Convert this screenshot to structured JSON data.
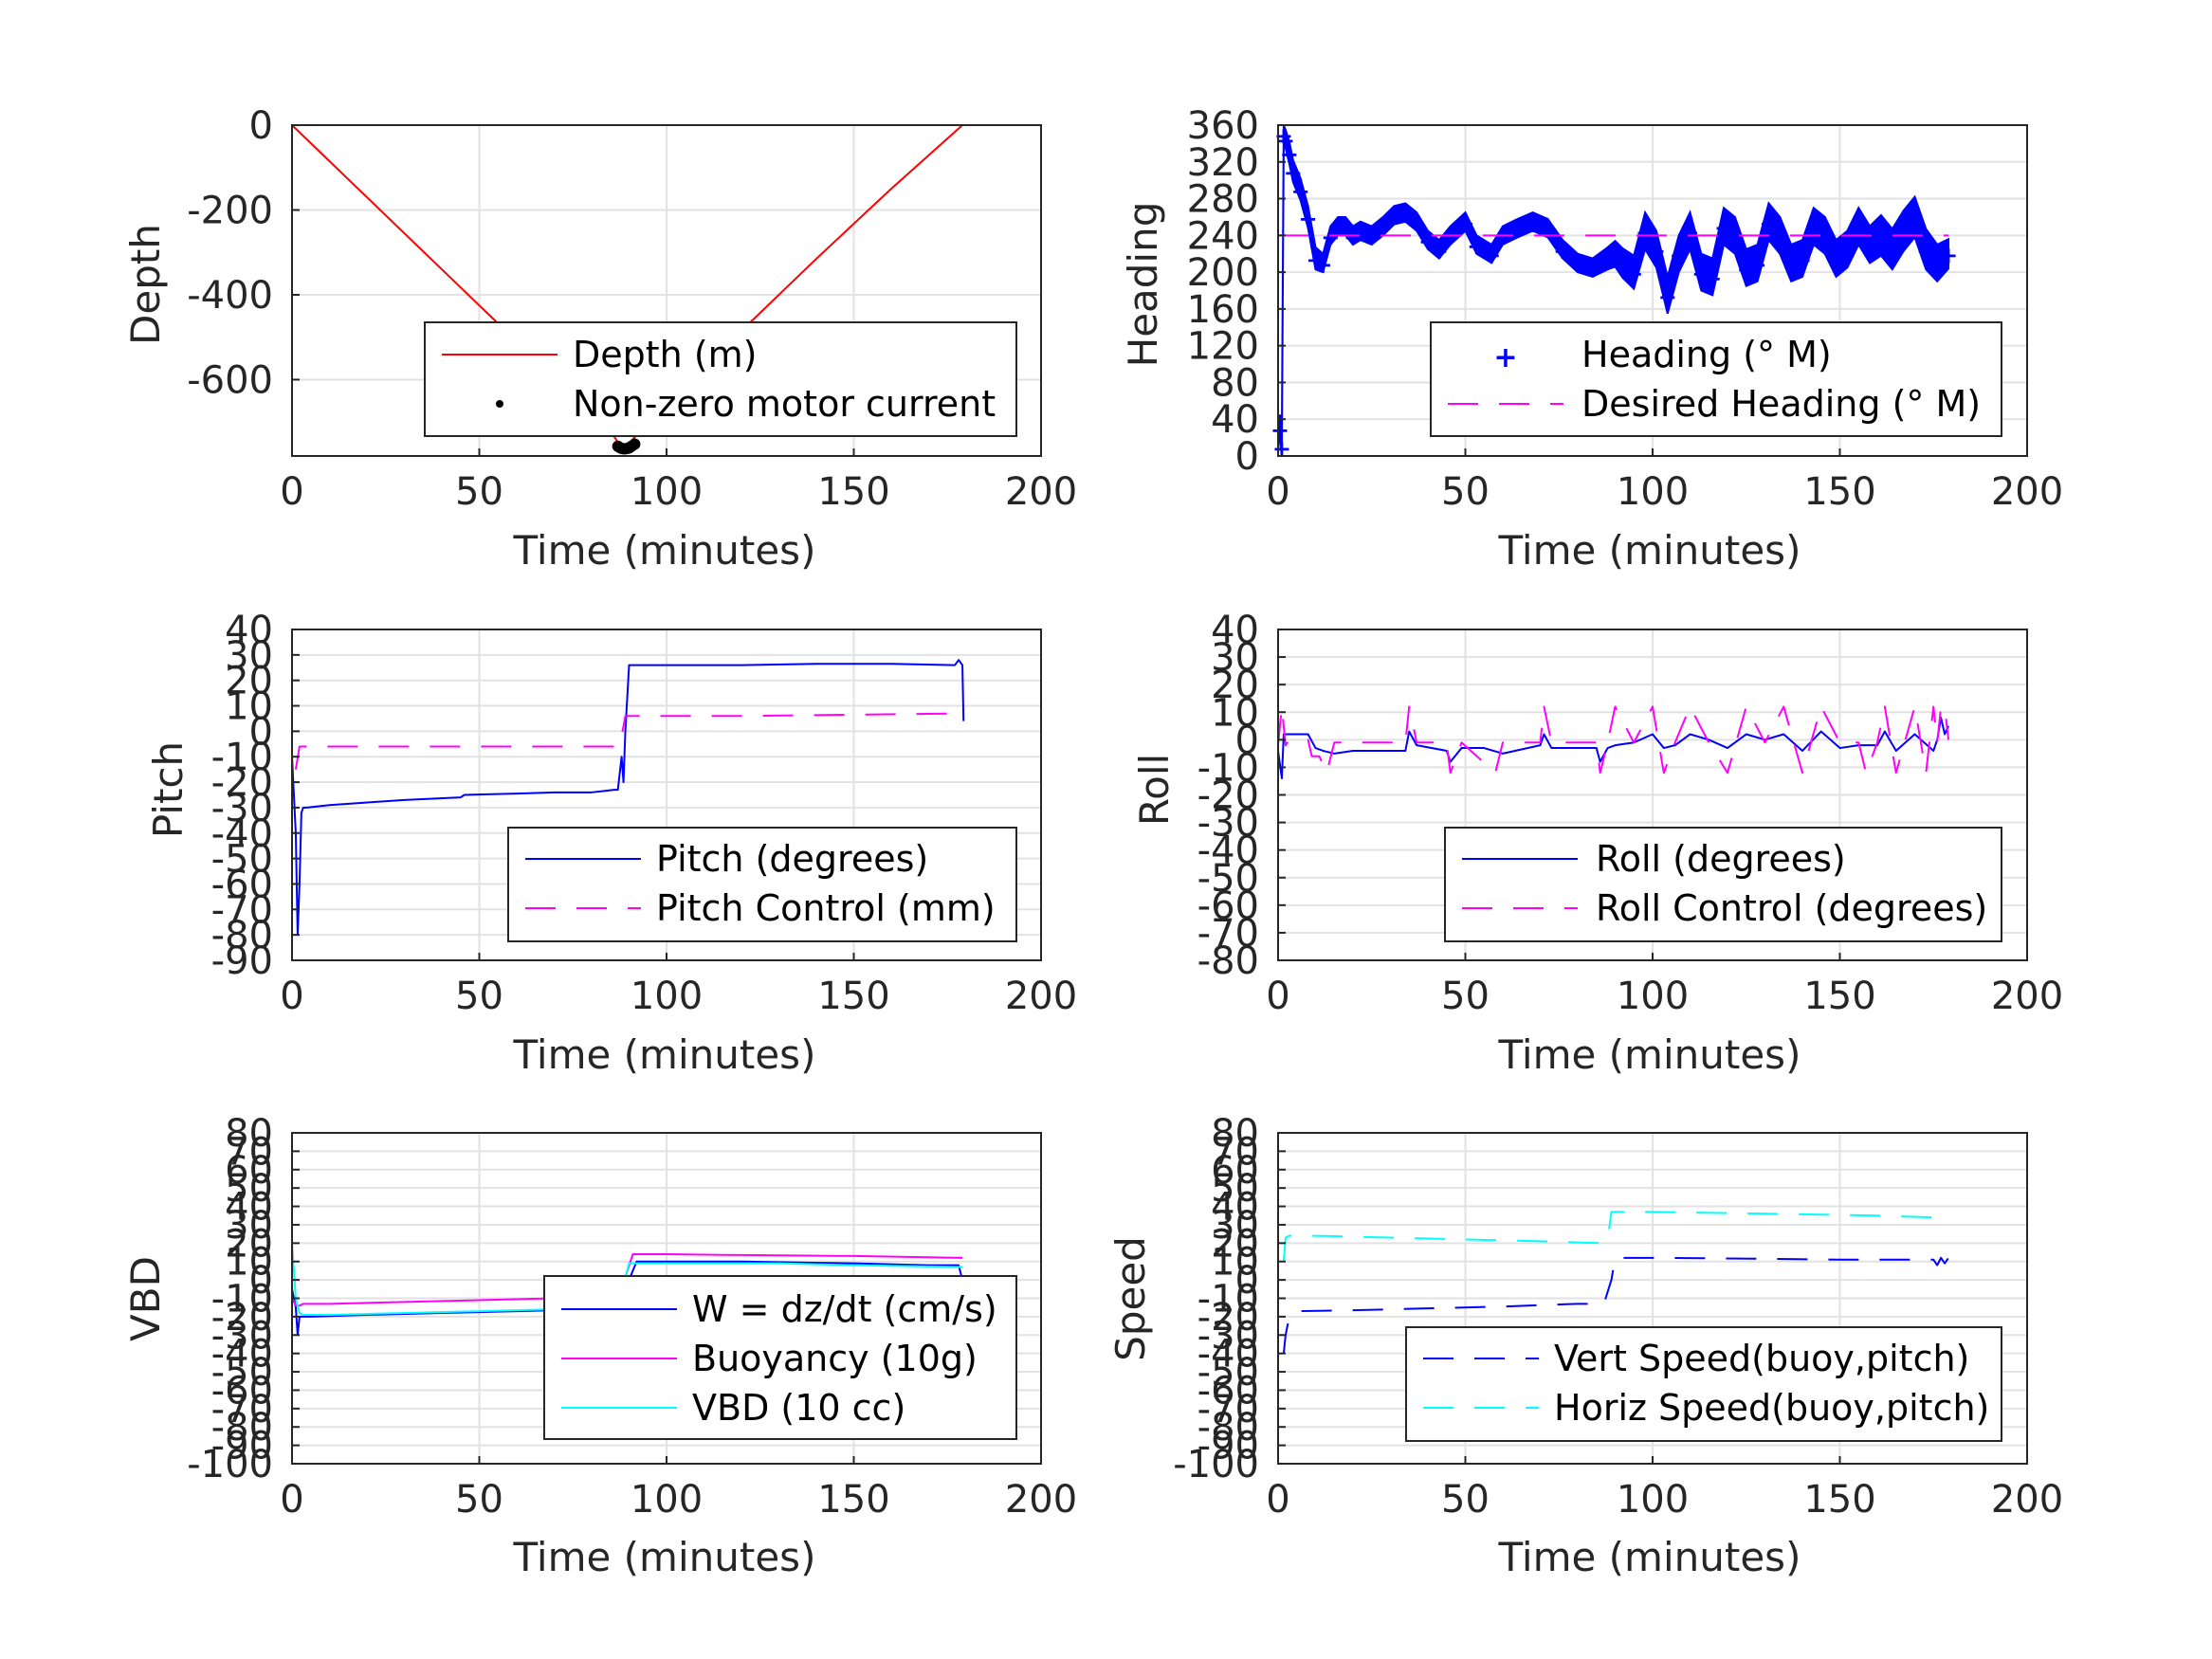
{
  "chart_data": [
    {
      "type": "line",
      "xlabel": "Time (minutes)",
      "ylabel": "Depth",
      "xlim": [
        0,
        200
      ],
      "ylim": [
        -780,
        0
      ],
      "xticks": [
        "0",
        "50",
        "100",
        "150",
        "200"
      ],
      "yticks": [
        0,
        -200,
        -400,
        -600
      ],
      "ytick_labels": [
        "0",
        "-200",
        "-400",
        "-600"
      ],
      "grid": true,
      "legend_position": "lower-right",
      "series": [
        {
          "name": "Depth (m)",
          "color": "#ff0000",
          "style": "solid",
          "x": [
            0,
            10,
            30,
            50,
            70,
            85,
            88,
            90,
            100,
            120,
            140,
            160,
            179
          ],
          "y": [
            0,
            -85,
            -255,
            -425,
            -595,
            -720,
            -762,
            -750,
            -655,
            -485,
            -315,
            -150,
            0
          ]
        },
        {
          "name": "Non-zero motor current",
          "color": "#000000",
          "style": "dots",
          "x": [
            87,
            87.5,
            88,
            88.5,
            89,
            89.5,
            90,
            90.5,
            91,
            91.5
          ],
          "y": [
            -757,
            -760,
            -762,
            -763,
            -763,
            -762,
            -761,
            -758,
            -755,
            -752
          ]
        }
      ]
    },
    {
      "type": "scatter",
      "xlabel": "Time (minutes)",
      "ylabel": "Heading",
      "xlim": [
        0,
        200
      ],
      "ylim": [
        0,
        360
      ],
      "xticks": [
        "0",
        "50",
        "100",
        "150",
        "200"
      ],
      "yticks": [
        0,
        40,
        80,
        120,
        160,
        200,
        240,
        280,
        320,
        360
      ],
      "ytick_labels": [
        "0",
        "40",
        "80",
        "120",
        "160",
        "200",
        "240",
        "280",
        "320",
        "360"
      ],
      "grid": true,
      "legend_position": "lower-right",
      "series": [
        {
          "name": "Heading (° M)",
          "color": "#0000ff",
          "style": "band",
          "x": [
            0.5,
            1,
            1.5,
            2,
            3,
            4,
            6,
            8,
            10,
            12,
            14,
            16,
            18,
            20,
            22,
            25,
            28,
            31,
            34,
            37,
            40,
            43,
            46,
            50,
            53,
            57,
            60,
            64,
            68,
            72,
            76,
            80,
            84,
            88,
            90,
            92,
            95,
            98,
            101,
            104,
            107,
            110,
            113,
            116,
            119,
            122,
            125,
            128,
            131,
            134,
            137,
            140,
            143,
            146,
            149,
            152,
            155,
            158,
            161,
            164,
            167,
            170,
            173,
            176,
            179
          ],
          "y": [
            30,
            10,
            350,
            345,
            330,
            310,
            290,
            260,
            215,
            210,
            240,
            250,
            250,
            240,
            245,
            240,
            250,
            262,
            265,
            255,
            235,
            225,
            240,
            255,
            230,
            220,
            240,
            248,
            255,
            248,
            225,
            210,
            205,
            215,
            220,
            210,
            200,
            245,
            225,
            175,
            220,
            245,
            200,
            195,
            250,
            240,
            205,
            210,
            255,
            240,
            210,
            215,
            250,
            240,
            215,
            225,
            250,
            230,
            240,
            225,
            245,
            260,
            225,
            210,
            220
          ],
          "spread": [
            15,
            15,
            10,
            10,
            12,
            12,
            12,
            12,
            12,
            10,
            10,
            10,
            10,
            10,
            10,
            10,
            10,
            10,
            10,
            10,
            10,
            10,
            10,
            10,
            10,
            10,
            10,
            10,
            10,
            10,
            10,
            10,
            10,
            12,
            14,
            16,
            18,
            20,
            20,
            20,
            20,
            20,
            20,
            20,
            20,
            20,
            20,
            20,
            20,
            20,
            20,
            20,
            20,
            20,
            20,
            20,
            20,
            20,
            22,
            22,
            22,
            22,
            22,
            20,
            16
          ]
        },
        {
          "name": "Desired Heading (° M)",
          "color": "#ff00ff",
          "style": "dashed",
          "x": [
            0,
            179
          ],
          "y": [
            240,
            240
          ]
        }
      ]
    },
    {
      "type": "line",
      "xlabel": "Time (minutes)",
      "ylabel": "Pitch",
      "xlim": [
        0,
        200
      ],
      "ylim": [
        -90,
        40
      ],
      "xticks": [
        "0",
        "50",
        "100",
        "150",
        "200"
      ],
      "yticks": [
        40,
        30,
        20,
        10,
        0,
        -10,
        -20,
        -30,
        -40,
        -50,
        -60,
        -70,
        -80,
        -90
      ],
      "ytick_labels": [
        "40",
        "30",
        "20",
        "10",
        "0",
        "-10",
        "-20",
        "-30",
        "-40",
        "-50",
        "-60",
        "-70",
        "-80",
        "-90"
      ],
      "grid": true,
      "legend_position": "lower-right",
      "series": [
        {
          "name": "Pitch (degrees)",
          "color": "#0000ff",
          "style": "solid",
          "x": [
            0,
            1,
            1.5,
            2,
            2.5,
            3,
            4,
            10,
            20,
            30,
            45,
            46,
            60,
            70,
            80,
            86,
            87,
            88,
            88.5,
            89,
            90,
            100,
            120,
            140,
            160,
            177,
            178,
            179,
            179.3
          ],
          "y": [
            -10,
            -40,
            -80,
            -60,
            -32,
            -30,
            -30,
            -29,
            -28,
            -27,
            -26,
            -25,
            -24.5,
            -24,
            -24,
            -23,
            -23,
            -10,
            -20,
            0,
            26,
            26,
            26,
            26.5,
            26.5,
            26,
            28,
            26,
            4
          ]
        },
        {
          "name": "Pitch Control (mm)",
          "color": "#ff00ff",
          "style": "dashed",
          "x": [
            1,
            2,
            10,
            50,
            87,
            87.5,
            88,
            89,
            90,
            120,
            150,
            179
          ],
          "y": [
            -15,
            -6,
            -6,
            -6,
            -6,
            -2,
            -2,
            6,
            6,
            6,
            6.5,
            7
          ]
        }
      ]
    },
    {
      "type": "line",
      "xlabel": "Time (minutes)",
      "ylabel": "Roll",
      "xlim": [
        0,
        200
      ],
      "ylim": [
        -80,
        40
      ],
      "xticks": [
        "0",
        "50",
        "100",
        "150",
        "200"
      ],
      "yticks": [
        40,
        30,
        20,
        10,
        0,
        -10,
        -20,
        -30,
        -40,
        -50,
        -60,
        -70,
        -80
      ],
      "ytick_labels": [
        "40",
        "30",
        "20",
        "10",
        "0",
        "-10",
        "-20",
        "-30",
        "-40",
        "-50",
        "-60",
        "-70",
        "-80"
      ],
      "grid": true,
      "legend_position": "lower-right",
      "series": [
        {
          "name": "Roll (degrees)",
          "color": "#0000ff",
          "style": "solid",
          "x": [
            0,
            1,
            1.5,
            2,
            5,
            8,
            10,
            12,
            15,
            20,
            30,
            34,
            35,
            37,
            45,
            46,
            49,
            55,
            60,
            70,
            71,
            73,
            85,
            86,
            88,
            90,
            95,
            100,
            103,
            106,
            110,
            115,
            120,
            125,
            130,
            135,
            140,
            145,
            150,
            155,
            160,
            162,
            165,
            170,
            175,
            176,
            177,
            178,
            179
          ],
          "y": [
            -4,
            -14,
            2,
            2,
            2,
            2,
            -3,
            -4,
            -5,
            -4,
            -4,
            -4,
            3,
            -2,
            -4,
            -8,
            -3,
            -3,
            -5,
            -2,
            2,
            -3,
            -3,
            -8,
            -3,
            -2,
            -1,
            2,
            -3,
            -2,
            2,
            0,
            -3,
            2,
            0,
            2,
            -4,
            3,
            -3,
            -2,
            -2,
            3,
            -4,
            2,
            -4,
            0,
            8,
            2,
            5
          ]
        },
        {
          "name": "Roll Control (degrees)",
          "color": "#ff00ff",
          "style": "dashed",
          "x": [
            0,
            1,
            2,
            3,
            4,
            8,
            9,
            11,
            13,
            15,
            30,
            34,
            35,
            37,
            45,
            46,
            49,
            58,
            60,
            70,
            71,
            73,
            85,
            86,
            88,
            90,
            95,
            100,
            103,
            106,
            110,
            115,
            120,
            125,
            130,
            135,
            140,
            145,
            150,
            155,
            157,
            160,
            162,
            165,
            170,
            173,
            175,
            176,
            177,
            178,
            179
          ],
          "y": [
            -2,
            12,
            -2,
            0,
            0,
            0,
            -6,
            -6,
            -12,
            -1,
            -1,
            -1,
            12,
            -1,
            -1,
            -12,
            -1,
            -12,
            -1,
            -1,
            12,
            -1,
            -1,
            -12,
            -1,
            12,
            -1,
            12,
            -12,
            -1,
            12,
            -1,
            -12,
            12,
            -1,
            12,
            -12,
            12,
            -1,
            -1,
            -12,
            -1,
            12,
            -12,
            12,
            -12,
            12,
            -1,
            12,
            12,
            0
          ]
        }
      ]
    },
    {
      "type": "line",
      "xlabel": "Time (minutes)",
      "ylabel": "VBD",
      "xlim": [
        0,
        200
      ],
      "ylim": [
        -100,
        80
      ],
      "xticks": [
        "0",
        "50",
        "100",
        "150",
        "200"
      ],
      "yticks": [
        80,
        70,
        60,
        50,
        40,
        30,
        20,
        10,
        0,
        -10,
        -20,
        -30,
        -40,
        -50,
        -60,
        -70,
        -80,
        -90,
        -100
      ],
      "ytick_labels": [
        "80",
        "70",
        "60",
        "50",
        "40",
        "30",
        "20",
        "10",
        "0",
        "-10",
        "-20",
        "-30",
        "-40",
        "-50",
        "-60",
        "-70",
        "-80",
        "-90",
        "-100"
      ],
      "grid": true,
      "legend_position": "lower-right",
      "series": [
        {
          "name": "W = dz/dt (cm/s)",
          "color": "#0000ff",
          "style": "solid",
          "x": [
            0,
            1,
            1.5,
            2,
            3,
            5,
            20,
            40,
            60,
            80,
            85,
            86,
            87,
            88,
            92,
            100,
            120,
            150,
            170,
            178,
            179
          ],
          "y": [
            -5,
            -15,
            -30,
            -20,
            -20,
            -20,
            -19,
            -18,
            -17,
            -16,
            -15,
            -10,
            -16,
            -10,
            10,
            10,
            10,
            9,
            8,
            8,
            0
          ]
        },
        {
          "name": "Buoyancy (10g)",
          "color": "#ff00ff",
          "style": "solid",
          "x": [
            0,
            1,
            2,
            3,
            10,
            30,
            50,
            70,
            86,
            87,
            91,
            100,
            120,
            150,
            179
          ],
          "y": [
            -10,
            -14,
            -14,
            -13,
            -13,
            -12,
            -11,
            -10,
            -10,
            -11,
            14,
            14,
            13.5,
            13,
            12
          ]
        },
        {
          "name": "VBD (10 cc)",
          "color": "#00ffff",
          "style": "solid",
          "x": [
            0,
            0.5,
            1,
            2,
            3,
            10,
            30,
            50,
            70,
            86,
            87,
            90,
            100,
            130,
            150,
            179
          ],
          "y": [
            20,
            5,
            -10,
            -18,
            -19,
            -19,
            -18,
            -17,
            -16,
            -15,
            -14,
            9,
            9,
            9,
            8,
            7
          ]
        }
      ]
    },
    {
      "type": "line",
      "xlabel": "Time (minutes)",
      "ylabel": "Speed",
      "xlim": [
        0,
        200
      ],
      "ylim": [
        -100,
        80
      ],
      "xticks": [
        "0",
        "50",
        "100",
        "150",
        "200"
      ],
      "yticks": [
        80,
        70,
        60,
        50,
        40,
        30,
        20,
        10,
        0,
        -10,
        -20,
        -30,
        -40,
        -50,
        -60,
        -70,
        -80,
        -90,
        -100
      ],
      "ytick_labels": [
        "80",
        "70",
        "60",
        "50",
        "40",
        "30",
        "20",
        "10",
        "0",
        "-10",
        "-20",
        "-30",
        "-40",
        "-50",
        "-60",
        "-70",
        "-80",
        "-90",
        "-100"
      ],
      "grid": true,
      "legend_position": "lower-right",
      "series": [
        {
          "name": "Vert Speed(buoy,pitch)",
          "color": "#0000ff",
          "style": "dashed",
          "x": [
            1.5,
            2,
            3,
            5,
            20,
            40,
            60,
            80,
            86,
            87,
            89,
            90,
            100,
            130,
            150,
            175,
            176,
            177,
            178,
            179
          ],
          "y": [
            -40,
            -30,
            -20,
            -17,
            -16.5,
            -15.5,
            -14.5,
            -13,
            -13,
            -13,
            0,
            12,
            12,
            11.5,
            11,
            11,
            8,
            12,
            9,
            12
          ]
        },
        {
          "name": "Horiz Speed(buoy,pitch)",
          "color": "#00ffff",
          "style": "dashed",
          "x": [
            1.5,
            2,
            3,
            10,
            30,
            50,
            70,
            86,
            87,
            88,
            89,
            90,
            100,
            130,
            160,
            175,
            176,
            177
          ],
          "y": [
            10,
            23,
            24,
            24,
            23,
            22,
            21,
            20,
            20,
            22,
            37,
            37,
            37,
            36,
            35,
            34,
            32,
            32
          ]
        }
      ]
    }
  ]
}
